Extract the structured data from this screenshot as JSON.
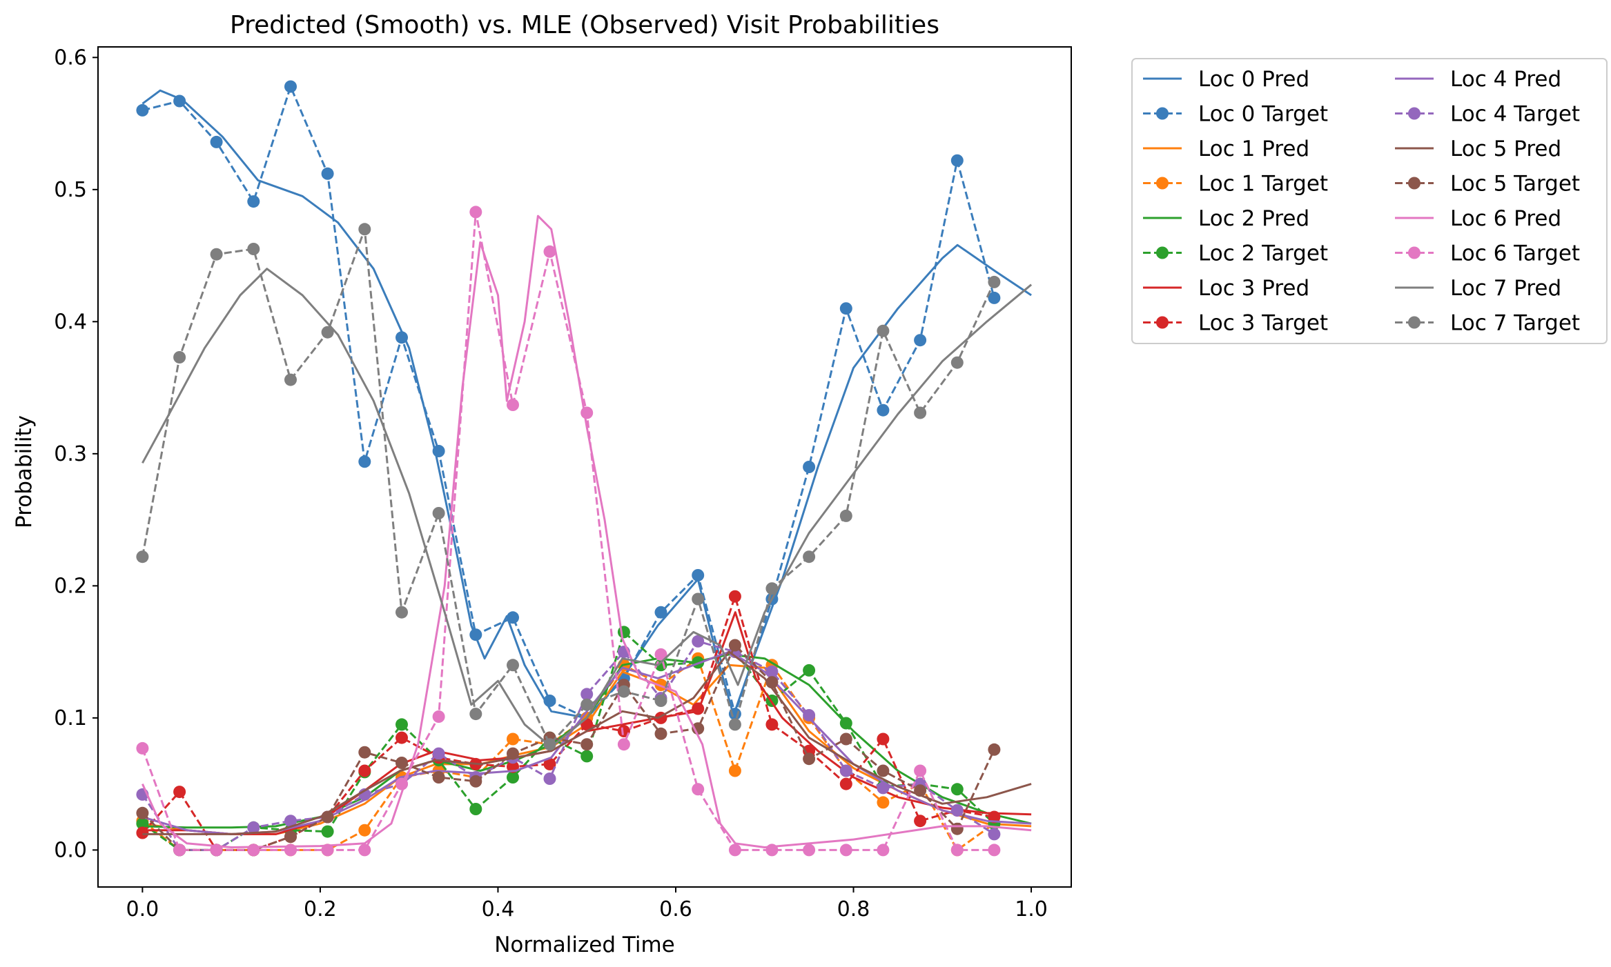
{
  "chart_data": {
    "type": "line",
    "title": "Predicted (Smooth) vs. MLE (Observed) Visit Probabilities",
    "xlabel": "Normalized Time",
    "ylabel": "Probability",
    "xlim": [
      -0.05,
      1.045
    ],
    "ylim": [
      -0.028,
      0.608
    ],
    "x_ticks": [
      "0.0",
      "0.2",
      "0.4",
      "0.6",
      "0.8",
      "1.0"
    ],
    "y_ticks": [
      "0.0",
      "0.1",
      "0.2",
      "0.3",
      "0.4",
      "0.5",
      "0.6"
    ],
    "grid": false,
    "legend_position": "outside right, upper",
    "legend_columns": 2,
    "target_x": [
      0.0,
      0.0417,
      0.0833,
      0.125,
      0.1667,
      0.2083,
      0.25,
      0.2917,
      0.3333,
      0.375,
      0.4167,
      0.4583,
      0.5,
      0.5417,
      0.5833,
      0.625,
      0.6667,
      0.7083,
      0.75,
      0.7917,
      0.8333,
      0.875,
      0.9167,
      0.9583
    ],
    "series": [
      {
        "name": "Loc 0",
        "color": "#3b7dbb",
        "pred_label": "Loc 0 Pred",
        "target_label": "Loc 0 Target",
        "target": [
          0.56,
          0.567,
          0.536,
          0.491,
          0.578,
          0.512,
          0.294,
          0.388,
          0.302,
          0.163,
          0.176,
          0.113,
          0.1,
          0.13,
          0.18,
          0.208,
          0.103,
          0.19,
          0.29,
          0.41,
          0.333,
          0.386,
          0.522,
          0.418
        ],
        "pred": [
          [
            0.0,
            0.565
          ],
          [
            0.02,
            0.575
          ],
          [
            0.045,
            0.568
          ],
          [
            0.09,
            0.54
          ],
          [
            0.13,
            0.507
          ],
          [
            0.18,
            0.495
          ],
          [
            0.22,
            0.475
          ],
          [
            0.26,
            0.44
          ],
          [
            0.3,
            0.38
          ],
          [
            0.33,
            0.3
          ],
          [
            0.355,
            0.22
          ],
          [
            0.37,
            0.17
          ],
          [
            0.385,
            0.145
          ],
          [
            0.41,
            0.177
          ],
          [
            0.43,
            0.14
          ],
          [
            0.46,
            0.105
          ],
          [
            0.5,
            0.1
          ],
          [
            0.54,
            0.13
          ],
          [
            0.58,
            0.17
          ],
          [
            0.625,
            0.205
          ],
          [
            0.645,
            0.15
          ],
          [
            0.665,
            0.102
          ],
          [
            0.69,
            0.15
          ],
          [
            0.72,
            0.205
          ],
          [
            0.76,
            0.29
          ],
          [
            0.8,
            0.365
          ],
          [
            0.85,
            0.41
          ],
          [
            0.9,
            0.448
          ],
          [
            0.917,
            0.458
          ],
          [
            0.96,
            0.438
          ],
          [
            1.0,
            0.42
          ]
        ]
      },
      {
        "name": "Loc 1",
        "color": "#ff7f0e",
        "pred_label": "Loc 1 Pred",
        "target_label": "Loc 1 Target",
        "target": [
          0.022,
          0.0,
          0.0,
          0.0,
          0.0,
          0.0,
          0.015,
          0.055,
          0.06,
          0.055,
          0.084,
          0.08,
          0.1,
          0.14,
          0.125,
          0.145,
          0.06,
          0.14,
          0.1,
          0.06,
          0.036,
          0.05,
          0.0,
          0.02
        ],
        "pred": [
          [
            0.0,
            0.02
          ],
          [
            0.05,
            0.015
          ],
          [
            0.1,
            0.012
          ],
          [
            0.15,
            0.012
          ],
          [
            0.2,
            0.02
          ],
          [
            0.25,
            0.035
          ],
          [
            0.29,
            0.055
          ],
          [
            0.33,
            0.065
          ],
          [
            0.38,
            0.065
          ],
          [
            0.42,
            0.072
          ],
          [
            0.46,
            0.078
          ],
          [
            0.5,
            0.095
          ],
          [
            0.54,
            0.135
          ],
          [
            0.58,
            0.125
          ],
          [
            0.62,
            0.11
          ],
          [
            0.66,
            0.14
          ],
          [
            0.7,
            0.138
          ],
          [
            0.75,
            0.09
          ],
          [
            0.8,
            0.062
          ],
          [
            0.85,
            0.045
          ],
          [
            0.9,
            0.03
          ],
          [
            0.95,
            0.02
          ],
          [
            1.0,
            0.018
          ]
        ]
      },
      {
        "name": "Loc 2",
        "color": "#2ca02c",
        "pred_label": "Loc 2 Pred",
        "target_label": "Loc 2 Target",
        "target": [
          0.02,
          0.0,
          0.0,
          0.017,
          0.015,
          0.014,
          0.059,
          0.095,
          0.068,
          0.031,
          0.055,
          0.085,
          0.071,
          0.165,
          0.14,
          0.142,
          0.15,
          0.113,
          0.136,
          0.096,
          0.048,
          0.05,
          0.046,
          0.02
        ],
        "pred": [
          [
            0.0,
            0.018
          ],
          [
            0.05,
            0.017
          ],
          [
            0.1,
            0.017
          ],
          [
            0.15,
            0.018
          ],
          [
            0.2,
            0.025
          ],
          [
            0.25,
            0.04
          ],
          [
            0.29,
            0.06
          ],
          [
            0.33,
            0.068
          ],
          [
            0.38,
            0.06
          ],
          [
            0.42,
            0.068
          ],
          [
            0.46,
            0.08
          ],
          [
            0.5,
            0.1
          ],
          [
            0.54,
            0.14
          ],
          [
            0.58,
            0.145
          ],
          [
            0.62,
            0.142
          ],
          [
            0.66,
            0.148
          ],
          [
            0.7,
            0.145
          ],
          [
            0.75,
            0.125
          ],
          [
            0.8,
            0.09
          ],
          [
            0.85,
            0.06
          ],
          [
            0.9,
            0.04
          ],
          [
            0.95,
            0.028
          ],
          [
            1.0,
            0.02
          ]
        ]
      },
      {
        "name": "Loc 3",
        "color": "#d62728",
        "pred_label": "Loc 3 Pred",
        "target_label": "Loc 3 Target",
        "target": [
          0.013,
          0.044,
          0.0,
          0.0,
          0.01,
          0.025,
          0.06,
          0.085,
          0.07,
          0.065,
          0.063,
          0.065,
          0.095,
          0.09,
          0.1,
          0.107,
          0.192,
          0.095,
          0.075,
          0.05,
          0.084,
          0.022,
          0.03,
          0.025
        ],
        "pred": [
          [
            0.0,
            0.015
          ],
          [
            0.05,
            0.015
          ],
          [
            0.1,
            0.012
          ],
          [
            0.15,
            0.012
          ],
          [
            0.2,
            0.022
          ],
          [
            0.25,
            0.045
          ],
          [
            0.29,
            0.065
          ],
          [
            0.33,
            0.075
          ],
          [
            0.38,
            0.068
          ],
          [
            0.42,
            0.07
          ],
          [
            0.46,
            0.075
          ],
          [
            0.5,
            0.09
          ],
          [
            0.54,
            0.095
          ],
          [
            0.58,
            0.1
          ],
          [
            0.625,
            0.105
          ],
          [
            0.645,
            0.14
          ],
          [
            0.667,
            0.18
          ],
          [
            0.69,
            0.13
          ],
          [
            0.72,
            0.1
          ],
          [
            0.76,
            0.075
          ],
          [
            0.8,
            0.055
          ],
          [
            0.85,
            0.04
          ],
          [
            0.9,
            0.032
          ],
          [
            0.95,
            0.028
          ],
          [
            1.0,
            0.027
          ]
        ]
      },
      {
        "name": "Loc 4",
        "color": "#9467bd",
        "pred_label": "Loc 4 Pred",
        "target_label": "Loc 4 Target",
        "target": [
          0.042,
          0.0,
          0.0,
          0.017,
          0.022,
          0.025,
          0.042,
          0.05,
          0.073,
          0.055,
          0.07,
          0.054,
          0.118,
          0.15,
          0.115,
          0.158,
          0.15,
          0.135,
          0.102,
          0.06,
          0.047,
          0.05,
          0.03,
          0.012
        ],
        "pred": [
          [
            0.0,
            0.025
          ],
          [
            0.05,
            0.015
          ],
          [
            0.1,
            0.012
          ],
          [
            0.15,
            0.014
          ],
          [
            0.2,
            0.022
          ],
          [
            0.25,
            0.038
          ],
          [
            0.29,
            0.055
          ],
          [
            0.33,
            0.06
          ],
          [
            0.38,
            0.058
          ],
          [
            0.42,
            0.06
          ],
          [
            0.46,
            0.07
          ],
          [
            0.5,
            0.105
          ],
          [
            0.54,
            0.138
          ],
          [
            0.58,
            0.13
          ],
          [
            0.62,
            0.14
          ],
          [
            0.66,
            0.15
          ],
          [
            0.7,
            0.135
          ],
          [
            0.75,
            0.1
          ],
          [
            0.8,
            0.065
          ],
          [
            0.85,
            0.045
          ],
          [
            0.9,
            0.03
          ],
          [
            0.95,
            0.022
          ],
          [
            1.0,
            0.02
          ]
        ]
      },
      {
        "name": "Loc 5",
        "color": "#8c564b",
        "pred_label": "Loc 5 Pred",
        "target_label": "Loc 5 Target",
        "target": [
          0.028,
          0.0,
          0.0,
          0.0,
          0.01,
          0.025,
          0.074,
          0.066,
          0.055,
          0.052,
          0.073,
          0.085,
          0.08,
          0.125,
          0.088,
          0.092,
          0.155,
          0.127,
          0.069,
          0.084,
          0.06,
          0.045,
          0.016,
          0.076
        ],
        "pred": [
          [
            0.0,
            0.012
          ],
          [
            0.05,
            0.012
          ],
          [
            0.1,
            0.012
          ],
          [
            0.15,
            0.014
          ],
          [
            0.2,
            0.025
          ],
          [
            0.25,
            0.045
          ],
          [
            0.29,
            0.06
          ],
          [
            0.33,
            0.068
          ],
          [
            0.38,
            0.065
          ],
          [
            0.42,
            0.07
          ],
          [
            0.46,
            0.075
          ],
          [
            0.5,
            0.09
          ],
          [
            0.54,
            0.105
          ],
          [
            0.58,
            0.1
          ],
          [
            0.62,
            0.115
          ],
          [
            0.66,
            0.15
          ],
          [
            0.7,
            0.13
          ],
          [
            0.75,
            0.085
          ],
          [
            0.8,
            0.065
          ],
          [
            0.85,
            0.048
          ],
          [
            0.9,
            0.035
          ],
          [
            0.95,
            0.04
          ],
          [
            1.0,
            0.05
          ]
        ]
      },
      {
        "name": "Loc 6",
        "color": "#e377c2",
        "pred_label": "Loc 6 Pred",
        "target_label": "Loc 6 Target",
        "target": [
          0.077,
          0.0,
          0.0,
          0.0,
          0.0,
          0.0,
          0.0,
          0.05,
          0.101,
          0.483,
          0.337,
          0.453,
          0.331,
          0.08,
          0.148,
          0.046,
          0.0,
          0.0,
          0.0,
          0.0,
          0.0,
          0.06,
          0.0,
          0.0
        ],
        "pred": [
          [
            0.0,
            0.05
          ],
          [
            0.02,
            0.02
          ],
          [
            0.05,
            0.005
          ],
          [
            0.1,
            0.002
          ],
          [
            0.2,
            0.003
          ],
          [
            0.25,
            0.005
          ],
          [
            0.28,
            0.02
          ],
          [
            0.31,
            0.08
          ],
          [
            0.34,
            0.2
          ],
          [
            0.36,
            0.35
          ],
          [
            0.38,
            0.46
          ],
          [
            0.4,
            0.42
          ],
          [
            0.41,
            0.34
          ],
          [
            0.43,
            0.4
          ],
          [
            0.445,
            0.48
          ],
          [
            0.46,
            0.47
          ],
          [
            0.48,
            0.4
          ],
          [
            0.5,
            0.32
          ],
          [
            0.52,
            0.25
          ],
          [
            0.54,
            0.16
          ],
          [
            0.56,
            0.13
          ],
          [
            0.6,
            0.12
          ],
          [
            0.63,
            0.08
          ],
          [
            0.65,
            0.02
          ],
          [
            0.667,
            0.005
          ],
          [
            0.7,
            0.002
          ],
          [
            0.8,
            0.008
          ],
          [
            0.9,
            0.018
          ],
          [
            0.95,
            0.018
          ],
          [
            1.0,
            0.015
          ]
        ]
      },
      {
        "name": "Loc 7",
        "color": "#7f7f7f",
        "pred_label": "Loc 7 Pred",
        "target_label": "Loc 7 Target",
        "target": [
          0.222,
          0.373,
          0.451,
          0.455,
          0.356,
          0.392,
          0.47,
          0.18,
          0.255,
          0.103,
          0.14,
          0.08,
          0.11,
          0.12,
          0.113,
          0.19,
          0.095,
          0.198,
          0.222,
          0.253,
          0.393,
          0.331,
          0.369,
          0.43
        ],
        "pred": [
          [
            0.0,
            0.293
          ],
          [
            0.03,
            0.33
          ],
          [
            0.07,
            0.38
          ],
          [
            0.11,
            0.42
          ],
          [
            0.14,
            0.44
          ],
          [
            0.18,
            0.42
          ],
          [
            0.22,
            0.39
          ],
          [
            0.26,
            0.34
          ],
          [
            0.3,
            0.27
          ],
          [
            0.34,
            0.18
          ],
          [
            0.37,
            0.11
          ],
          [
            0.4,
            0.128
          ],
          [
            0.43,
            0.095
          ],
          [
            0.46,
            0.078
          ],
          [
            0.5,
            0.1
          ],
          [
            0.54,
            0.145
          ],
          [
            0.58,
            0.14
          ],
          [
            0.62,
            0.165
          ],
          [
            0.65,
            0.155
          ],
          [
            0.67,
            0.125
          ],
          [
            0.7,
            0.18
          ],
          [
            0.75,
            0.24
          ],
          [
            0.8,
            0.285
          ],
          [
            0.85,
            0.33
          ],
          [
            0.9,
            0.37
          ],
          [
            0.95,
            0.4
          ],
          [
            1.0,
            0.428
          ]
        ]
      }
    ]
  }
}
